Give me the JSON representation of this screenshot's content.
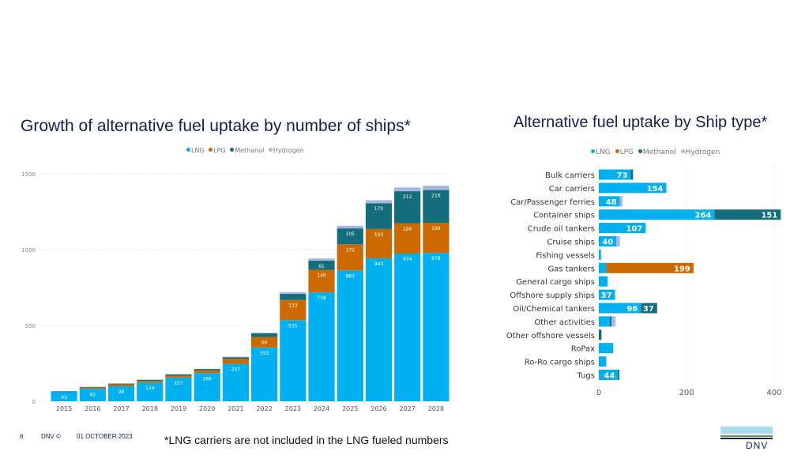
{
  "colors": {
    "LNG": "#00b0f0",
    "LPG": "#cc6a00",
    "Methanol": "#136d7a",
    "Hydrogen": "#a7b6e6",
    "title": "#0f204b"
  },
  "chart_data": [
    {
      "type": "bar",
      "stacked": true,
      "orientation": "vertical",
      "title": "Growth of alternative fuel uptake by number of ships*",
      "xlabel": "",
      "ylabel": "",
      "ylim": [
        0,
        1500
      ],
      "yticks": [
        "0",
        "500",
        "1000",
        "1500"
      ],
      "grid": true,
      "legend_position": "top-center",
      "legend": [
        "LNG",
        "LPG",
        "Methanol",
        "Hydrogen"
      ],
      "categories": [
        "2015",
        "2016",
        "2017",
        "2018",
        "2019",
        "2020",
        "2021",
        "2022",
        "2023",
        "2024",
        "2025",
        "2026",
        "2027",
        "2028"
      ],
      "series": [
        {
          "name": "LNG",
          "values": [
            63,
            82,
            99,
            124,
            157,
            186,
            247,
            355,
            535,
            718,
            863,
            943,
            974,
            978
          ]
        },
        {
          "name": "LPG",
          "values": [
            0,
            8,
            12,
            10,
            12,
            18,
            33,
            69,
            133,
            149,
            172,
            193,
            199,
            199
          ]
        },
        {
          "name": "Methanol",
          "values": [
            3,
            5,
            6,
            8,
            9,
            9,
            12,
            25,
            40,
            61,
            105,
            170,
            212,
            216
          ]
        },
        {
          "name": "Hydrogen",
          "values": [
            0,
            0,
            0,
            0,
            0,
            0,
            2,
            3,
            12,
            14,
            17,
            20,
            25,
            28
          ]
        }
      ],
      "data_labels": {
        "LNG": [
          "63",
          "82",
          "99",
          "124",
          "157",
          "186",
          "247",
          "355",
          "535",
          "718",
          "863",
          "943",
          "974",
          "978"
        ],
        "LPG": [
          "",
          "",
          "",
          "",
          "",
          "",
          "",
          "69",
          "133",
          "149",
          "172",
          "193",
          "199",
          "199"
        ],
        "Methanol": [
          "",
          "",
          "",
          "",
          "",
          "",
          "",
          "",
          "",
          "61",
          "105",
          "170",
          "212",
          "216"
        ],
        "Hydrogen": [
          "",
          "",
          "",
          "",
          "",
          "",
          "",
          "",
          "",
          "",
          "",
          "",
          "",
          ""
        ]
      }
    },
    {
      "type": "bar",
      "stacked": true,
      "orientation": "horizontal",
      "title": "Alternative fuel uptake by Ship type*",
      "xlabel": "",
      "ylabel": "",
      "xlim": [
        0,
        400
      ],
      "xticks": [
        "0",
        "200",
        "400"
      ],
      "grid": true,
      "legend_position": "top-center",
      "legend": [
        "LNG",
        "LPG",
        "Methanol",
        "Hydrogen"
      ],
      "categories": [
        "Bulk carriers",
        "Car carriers",
        "Car/Passenger ferries",
        "Container ships",
        "Crude oil tankers",
        "Cruise ships",
        "Fishing vessels",
        "Gas tankers",
        "General cargo ships",
        "Offshore supply ships",
        "Oil/Chemical tankers",
        "Other activities",
        "Other offshore vessels",
        "RoPax",
        "Ro-Ro cargo ships",
        "Tugs"
      ],
      "series": [
        {
          "name": "LNG",
          "values": [
            73,
            154,
            48,
            264,
            107,
            40,
            5,
            17,
            20,
            37,
            96,
            25,
            0,
            33,
            17,
            44
          ]
        },
        {
          "name": "LPG",
          "values": [
            0,
            0,
            0,
            0,
            0,
            0,
            0,
            199,
            0,
            0,
            0,
            0,
            0,
            0,
            0,
            0
          ]
        },
        {
          "name": "Methanol",
          "values": [
            5,
            0,
            0,
            151,
            0,
            0,
            0,
            0,
            0,
            0,
            37,
            4,
            6,
            0,
            0,
            3
          ]
        },
        {
          "name": "Hydrogen",
          "values": [
            0,
            0,
            6,
            0,
            0,
            8,
            0,
            0,
            0,
            0,
            0,
            9,
            0,
            0,
            0,
            0
          ]
        }
      ],
      "data_labels": {
        "LNG": [
          "73",
          "154",
          "48",
          "264",
          "107",
          "40",
          "",
          "",
          "",
          "37",
          "96",
          "",
          "",
          "",
          "",
          "44"
        ],
        "LPG": [
          "",
          "",
          "",
          "",
          "",
          "",
          "",
          "199",
          "",
          "",
          "",
          "",
          "",
          "",
          "",
          ""
        ],
        "Methanol": [
          "",
          "",
          "",
          "151",
          "",
          "",
          "",
          "",
          "",
          "",
          "37",
          "",
          "",
          "",
          "",
          ""
        ],
        "Hydrogen": [
          "",
          "",
          "",
          "",
          "",
          "",
          "",
          "",
          "",
          "",
          "",
          "",
          "",
          "",
          "",
          ""
        ]
      }
    }
  ],
  "left_chart": {
    "title": "Growth of alternative fuel uptake by number of ships*",
    "legend": [
      "LNG",
      "LPG",
      "Methanol",
      "Hydrogen"
    ]
  },
  "right_chart": {
    "title": "Alternative fuel uptake by Ship type*",
    "legend": [
      "LNG",
      "LPG",
      "Methanol",
      "Hydrogen"
    ]
  },
  "footer": {
    "page_number": "6",
    "copyright": "DNV ©",
    "date": "01 OCTOBER 2023",
    "footnote": "*LNG carriers are not included in the LNG fueled numbers"
  },
  "logo": {
    "text": "DNV"
  }
}
